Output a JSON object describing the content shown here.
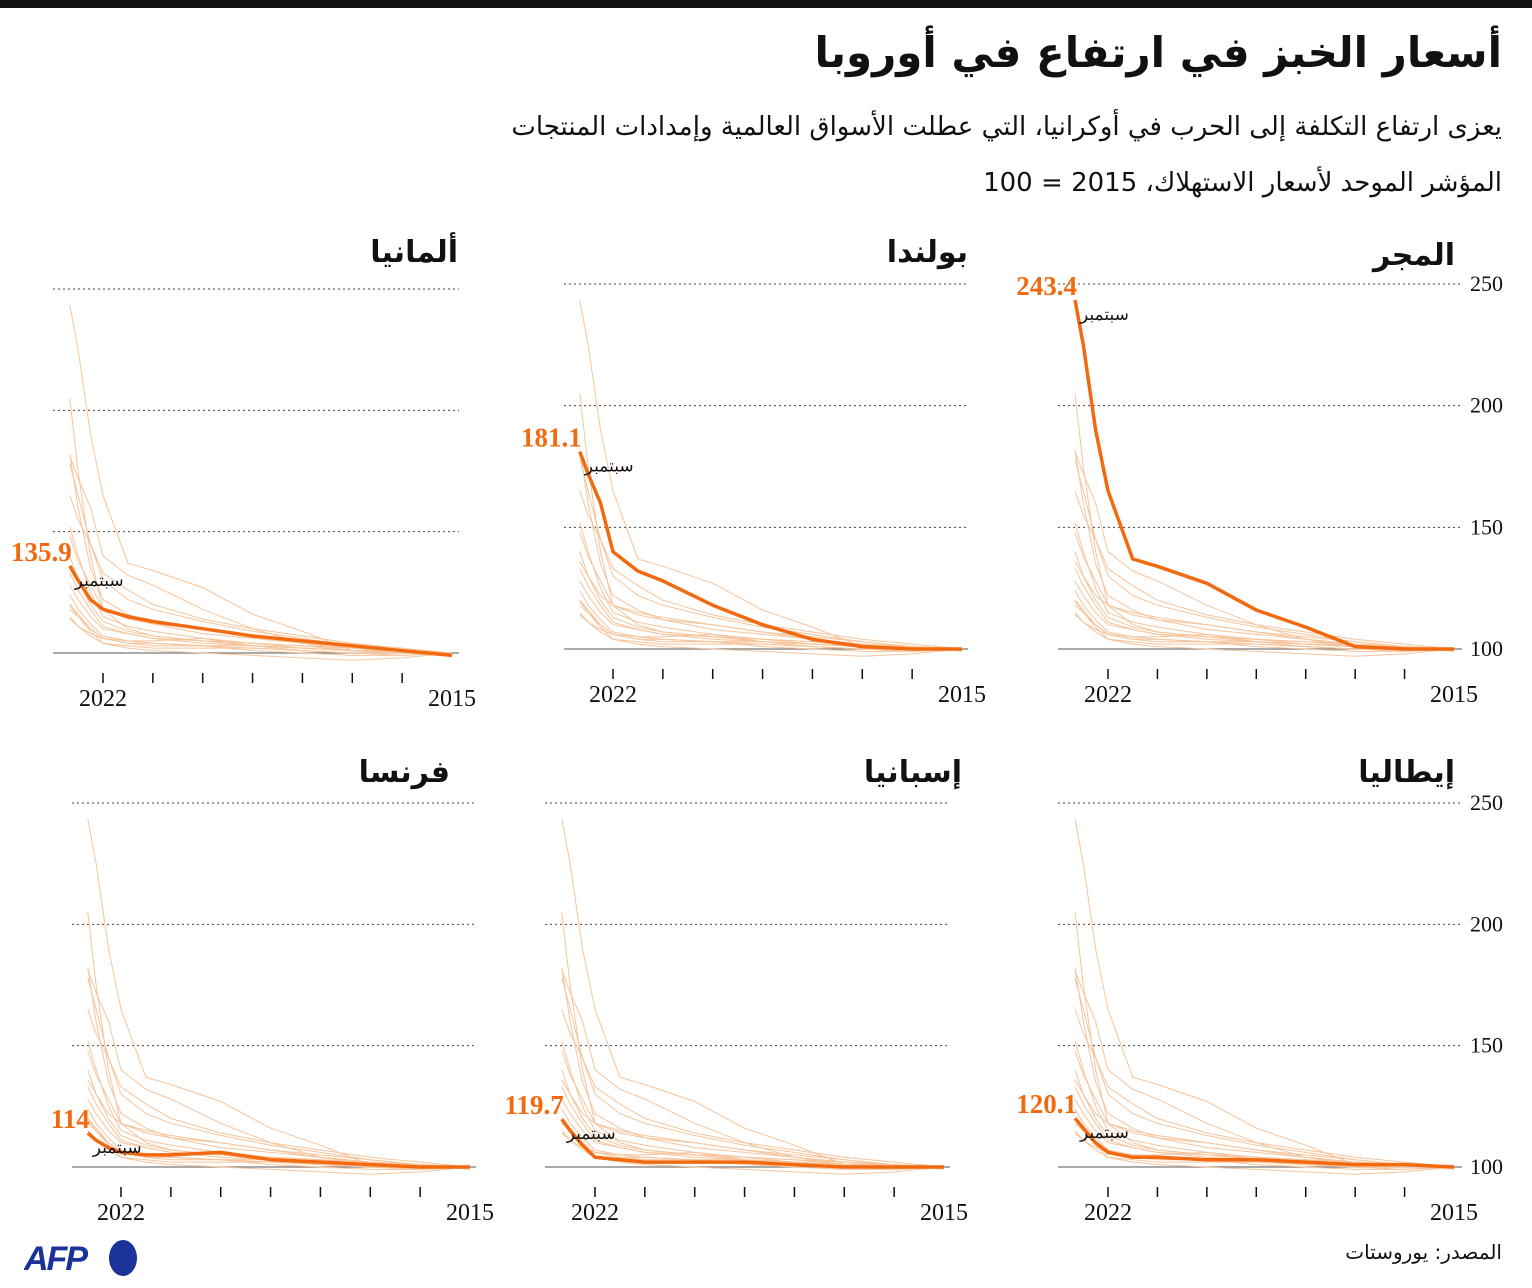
{
  "header": {
    "title": "أسعار الخبز في ارتفاع في أوروبا",
    "subtitle": "يعزى ارتفاع التكلفة إلى الحرب في أوكرانيا، التي عطلت الأسواق العالمية وإمدادات المنتجات",
    "unit_note": "المؤشر الموحد لأسعار الاستهلاك، 2015 = 100"
  },
  "footer": {
    "source": "المصدر: يوروستات",
    "logo": "AFP"
  },
  "colors": {
    "highlight": "#f26a10",
    "background_lines": "#f6c49b",
    "grid": "#555555",
    "logo": "#1a3399"
  },
  "chart_data": {
    "type": "line",
    "layout": "small-multiples",
    "x_axis": {
      "reversed": true,
      "range": [
        "2015-01",
        "2022-09"
      ],
      "tick_labels": [
        "2022",
        "2015"
      ],
      "ticks": [
        "2016",
        "2017",
        "2018",
        "2019",
        "2020",
        "2021",
        "2022"
      ]
    },
    "y_axis": {
      "range": [
        100,
        250
      ],
      "tick_labels": [
        "250",
        "200",
        "150",
        "100"
      ],
      "grid": "dotted"
    },
    "dates": [
      "2015-01",
      "2016-01",
      "2017-01",
      "2018-01",
      "2019-01",
      "2020-01",
      "2021-01",
      "2021-07",
      "2022-01",
      "2022-04",
      "2022-07",
      "2022-09"
    ],
    "last_label": "سبتمبر",
    "panels": [
      {
        "name": "المجر",
        "last_value": "243.4",
        "values": [
          100,
          100,
          101,
          109,
          116,
          127,
          134,
          137,
          165,
          190,
          225,
          243.4
        ]
      },
      {
        "name": "بولندا",
        "last_value": "181.1",
        "values": [
          100,
          100,
          101,
          104,
          110,
          118,
          128,
          132,
          140,
          160,
          172,
          181.1
        ]
      },
      {
        "name": "ألمانيا",
        "last_value": "135.9",
        "values": [
          99,
          101,
          103,
          105,
          107,
          110,
          113,
          115,
          118,
          122,
          130,
          135.9
        ]
      },
      {
        "name": "إيطاليا",
        "last_value": "120.1",
        "values": [
          100,
          101,
          101,
          102,
          103,
          103,
          104,
          104,
          106,
          110,
          116,
          120.1
        ]
      },
      {
        "name": "إسبانيا",
        "last_value": "119.7",
        "values": [
          100,
          100,
          100,
          101,
          102,
          102,
          102,
          103,
          104,
          109,
          115,
          119.7
        ]
      },
      {
        "name": "فرنسا",
        "last_value": "114",
        "values": [
          100,
          100,
          101,
          102,
          103,
          106,
          105,
          105,
          106,
          108,
          111,
          114
        ]
      }
    ],
    "other_countries": [
      [
        100,
        101,
        101,
        102,
        104,
        105,
        107,
        110,
        118,
        140,
        175,
        205
      ],
      [
        100,
        100,
        102,
        104,
        106,
        108,
        112,
        116,
        122,
        135,
        160,
        182
      ],
      [
        100,
        101,
        103,
        106,
        109,
        113,
        118,
        122,
        130,
        145,
        165,
        178
      ],
      [
        100,
        102,
        104,
        107,
        110,
        114,
        120,
        126,
        133,
        145,
        155,
        165
      ],
      [
        100,
        100,
        101,
        103,
        104,
        106,
        109,
        111,
        115,
        125,
        140,
        152
      ],
      [
        100,
        101,
        102,
        104,
        107,
        110,
        112,
        114,
        118,
        128,
        138,
        148
      ],
      [
        100,
        99,
        100,
        101,
        103,
        105,
        107,
        109,
        113,
        120,
        130,
        140
      ],
      [
        100,
        100,
        101,
        102,
        103,
        104,
        106,
        108,
        111,
        118,
        126,
        133
      ],
      [
        100,
        101,
        102,
        103,
        104,
        105,
        106,
        108,
        110,
        115,
        122,
        128
      ],
      [
        100,
        99,
        99,
        100,
        101,
        103,
        104,
        105,
        107,
        112,
        118,
        124
      ],
      [
        100,
        100,
        100,
        101,
        102,
        103,
        103,
        104,
        106,
        110,
        115,
        118
      ],
      [
        100,
        98,
        97,
        98,
        99,
        100,
        101,
        102,
        104,
        107,
        111,
        115
      ]
    ]
  }
}
